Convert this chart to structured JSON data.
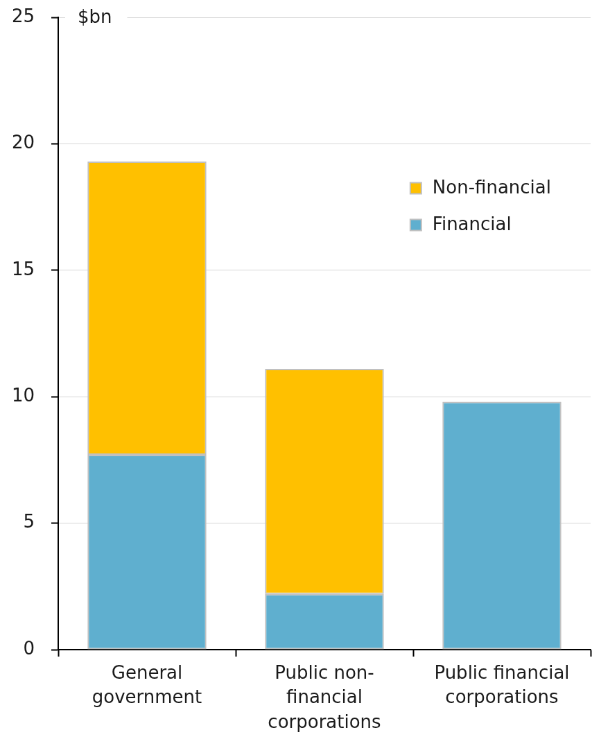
{
  "chart_data": {
    "type": "bar",
    "ylabel": "$bn",
    "categories": [
      "General government",
      "Public non-financial corporations",
      "Public financial corporations"
    ],
    "stacked": true,
    "series": [
      {
        "name": "Financial",
        "color": "#5fafcf",
        "values": [
          7.7,
          2.2,
          9.8
        ]
      },
      {
        "name": "Non-financial",
        "color": "#ffc000",
        "values": [
          11.6,
          8.9,
          0
        ]
      }
    ],
    "ylim": [
      0,
      25
    ],
    "yticks": [
      0,
      5,
      10,
      15,
      20,
      25
    ],
    "grid": "y",
    "legend": "top right"
  }
}
